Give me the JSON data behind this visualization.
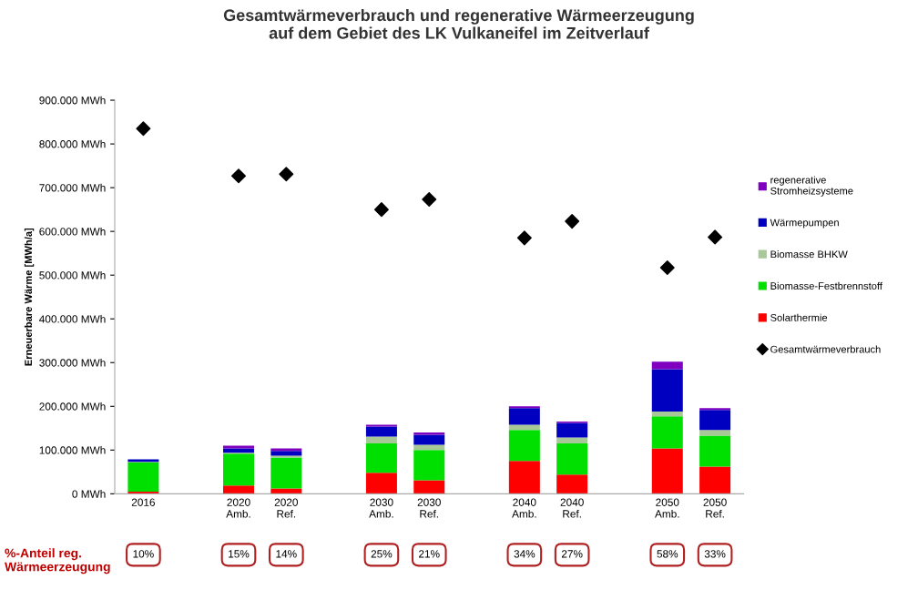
{
  "chart_data": {
    "type": "bar",
    "stacked": true,
    "title": "Gesamtwärmeverbrauch und regenerative Wärmeerzeugung\nauf dem Gebiet des LK Vulkaneifel im Zeitverlauf",
    "ylabel": "Erneuerbare Wärme [MWh/a]",
    "categories": [
      "2016",
      null,
      "2020\nAmb.",
      "2020\nRef.",
      null,
      "2030\nAmb.",
      "2030\nRef.",
      null,
      "2040\nAmb.",
      "2040\nRef.",
      null,
      "2050\nAmb.",
      "2050\nRef."
    ],
    "series": [
      {
        "name": "Solarthermie",
        "color": "#ff0000",
        "values": [
          5000,
          null,
          19000,
          12000,
          null,
          48000,
          31000,
          null,
          75000,
          44000,
          null,
          104000,
          62000
        ]
      },
      {
        "name": "Biomasse-Festbrennstoff",
        "color": "#00e000",
        "values": [
          67000,
          null,
          73000,
          71000,
          null,
          67000,
          69000,
          null,
          71000,
          71000,
          null,
          73000,
          71000
        ]
      },
      {
        "name": "Biomasse BHKW",
        "color": "#a8c898",
        "values": [
          1000,
          null,
          2000,
          4000,
          null,
          16000,
          12000,
          null,
          12000,
          14000,
          null,
          11000,
          13000
        ]
      },
      {
        "name": "Wärmepumpen",
        "color": "#0000c0",
        "values": [
          6000,
          null,
          10000,
          11000,
          null,
          23000,
          23000,
          null,
          38000,
          33000,
          null,
          97000,
          46000
        ]
      },
      {
        "name": "regenerative Stromheizsysteme",
        "color": "#8000c0",
        "values": [
          0,
          null,
          6000,
          6000,
          null,
          4000,
          5000,
          null,
          4000,
          3000,
          null,
          17000,
          4000
        ]
      },
      {
        "name": "Gesamtwärmeverbrauch",
        "type": "scatter",
        "color": "#000000",
        "marker": "diamond",
        "values": [
          835000,
          null,
          727000,
          731000,
          null,
          650000,
          673000,
          null,
          585000,
          623000,
          null,
          517000,
          587000
        ]
      }
    ],
    "ylim": [
      0,
      900000
    ],
    "yticks": [
      {
        "value": 0,
        "label": "0 MWh"
      },
      {
        "value": 100000,
        "label": "100.000 MWh"
      },
      {
        "value": 200000,
        "label": "200.000 MWh"
      },
      {
        "value": 300000,
        "label": "300.000 MWh"
      },
      {
        "value": 400000,
        "label": "400.000 MWh"
      },
      {
        "value": 500000,
        "label": "500.000 MWh"
      },
      {
        "value": 600000,
        "label": "600.000 MWh"
      },
      {
        "value": 700000,
        "label": "700.000 MWh"
      },
      {
        "value": 800000,
        "label": "800.000 MWh"
      },
      {
        "value": 900000,
        "label": "900.000 MWh"
      }
    ],
    "legend": "right",
    "annotations": [
      "%-Anteil reg.\nWärmeerzeugung",
      "10%",
      "15%",
      "14%",
      "25%",
      "21%",
      "34%",
      "27%",
      "58%",
      "33%"
    ]
  }
}
